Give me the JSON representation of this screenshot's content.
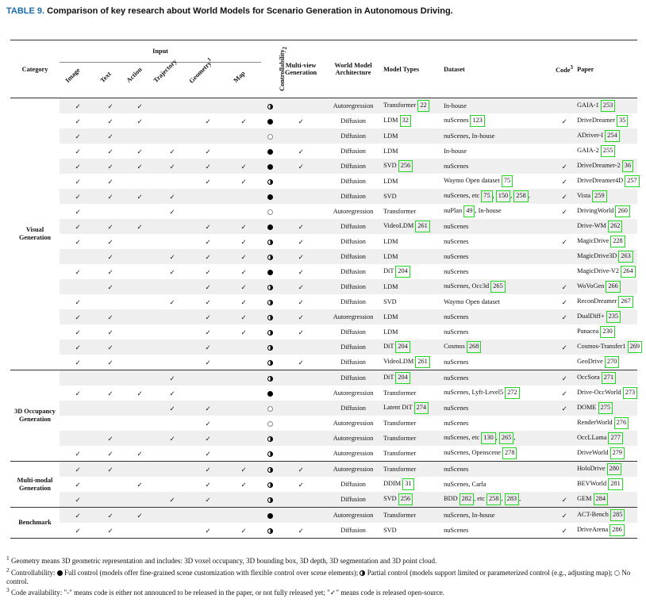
{
  "caption": {
    "label": "TABLE 9.",
    "text": "Comparison of key research about World Models for Scenario Generation in Autonomous Driving."
  },
  "header": {
    "category": "Category",
    "input": "Input",
    "image": "Image",
    "text": "Text",
    "action": "Action",
    "trajectory": "Trajectory",
    "geometry": "Geometry",
    "geometry_sup": "1",
    "map": "Map",
    "controllability": "Controllability",
    "controllability_sup": "2",
    "multiview_1": "Multi-view",
    "multiview_2": "Generation",
    "arch_1": "World Model",
    "arch_2": "Architecture",
    "model_types": "Model Types",
    "dataset": "Dataset",
    "code": "Code",
    "code_sup": "3",
    "paper": "Paper"
  },
  "groups": [
    {
      "category": "Visual Generation",
      "rows": [
        {
          "img": "✓",
          "txt": "✓",
          "act": "✓",
          "trj": "",
          "geo": "",
          "map": "",
          "ctl": "partial",
          "mv": "",
          "arch": "Autoregression",
          "mt": "Transformer",
          "mt_ref": "22",
          "ds": "In-house",
          "code": "",
          "paper": "GAIA-1",
          "ref": "253"
        },
        {
          "img": "✓",
          "txt": "✓",
          "act": "✓",
          "trj": "",
          "geo": "✓",
          "map": "✓",
          "ctl": "full",
          "mv": "✓",
          "arch": "Diffusion",
          "mt": "LDM",
          "mt_ref": "32",
          "ds": "nuScenes",
          "ds_ref": "123",
          "code": "✓",
          "paper": "DriveDreamer",
          "ref": "35"
        },
        {
          "img": "✓",
          "txt": "✓",
          "act": "",
          "trj": "",
          "geo": "",
          "map": "",
          "ctl": "none",
          "mv": "",
          "arch": "Diffusion",
          "mt": "LDM",
          "ds": "nuScenes, In-house",
          "code": "",
          "paper": "ADriver-I",
          "ref": "254"
        },
        {
          "img": "✓",
          "txt": "✓",
          "act": "✓",
          "trj": "✓",
          "geo": "✓",
          "map": "",
          "ctl": "full",
          "mv": "✓",
          "arch": "Diffusion",
          "mt": "LDM",
          "ds": "In-house",
          "code": "",
          "paper": "GAIA-2",
          "ref": "255"
        },
        {
          "img": "✓",
          "txt": "✓",
          "act": "✓",
          "trj": "✓",
          "geo": "✓",
          "map": "✓",
          "ctl": "full",
          "mv": "✓",
          "arch": "Diffusion",
          "mt": "SVD",
          "mt_ref": "256",
          "ds": "nuScenes",
          "code": "✓",
          "paper": "DriveDreamer-2",
          "ref": "36"
        },
        {
          "img": "✓",
          "txt": "✓",
          "act": "",
          "trj": "",
          "geo": "✓",
          "map": "✓",
          "ctl": "partial",
          "mv": "",
          "arch": "Diffusion",
          "mt": "LDM",
          "ds": "Waymo Open dataset",
          "ds_ref": "75",
          "code": "✓",
          "paper": "DriveDreamer4D",
          "ref": "257"
        },
        {
          "img": "✓",
          "txt": "✓",
          "act": "✓",
          "trj": "✓",
          "geo": "",
          "map": "",
          "ctl": "full",
          "mv": "",
          "arch": "Diffusion",
          "mt": "SVD",
          "ds": "nuScenes, etc",
          "ds_refs": [
            "75",
            "150",
            "258"
          ],
          "code": "✓",
          "paper": "Vista",
          "ref": "259"
        },
        {
          "img": "✓",
          "txt": "",
          "act": "",
          "trj": "✓",
          "geo": "",
          "map": "",
          "ctl": "none",
          "mv": "",
          "arch": "Autoregression",
          "mt": "Transformer",
          "ds": "nuPlan",
          "ds_ref": "49",
          "ds_suffix": ", In-house",
          "code": "✓",
          "paper": "DrivingWorld",
          "ref": "260"
        },
        {
          "img": "✓",
          "txt": "✓",
          "act": "✓",
          "trj": "",
          "geo": "✓",
          "map": "✓",
          "ctl": "full",
          "mv": "✓",
          "arch": "Diffusion",
          "mt": "VideoLDM",
          "mt_ref": "261",
          "ds": "nuScenes",
          "code": "",
          "paper": "Drive-WM",
          "ref": "262"
        },
        {
          "img": "✓",
          "txt": "✓",
          "act": "",
          "trj": "",
          "geo": "✓",
          "map": "✓",
          "ctl": "partial",
          "mv": "✓",
          "arch": "Diffusion",
          "mt": "LDM",
          "ds": "nuScenes",
          "code": "✓",
          "paper": "MagicDrive",
          "ref": "228"
        },
        {
          "img": "",
          "txt": "✓",
          "act": "",
          "trj": "✓",
          "geo": "✓",
          "map": "✓",
          "ctl": "partial",
          "mv": "✓",
          "arch": "Diffusion",
          "mt": "LDM",
          "ds": "nuScenes",
          "code": "",
          "paper": "MagicDrive3D",
          "ref": "263"
        },
        {
          "img": "✓",
          "txt": "✓",
          "act": "",
          "trj": "✓",
          "geo": "✓",
          "map": "✓",
          "ctl": "full",
          "mv": "✓",
          "arch": "Diffusion",
          "mt": "DiT",
          "mt_ref": "204",
          "ds": "nuScenes",
          "code": "",
          "paper": "MagicDrive-V2",
          "ref": "264"
        },
        {
          "img": "",
          "txt": "✓",
          "act": "",
          "trj": "",
          "geo": "✓",
          "map": "✓",
          "ctl": "partial",
          "mv": "✓",
          "arch": "Diffusion",
          "mt": "LDM",
          "ds": "nuScenes, Occ3d",
          "ds_ref": "265",
          "code": "✓",
          "paper": "WoVoGen",
          "ref": "266"
        },
        {
          "img": "✓",
          "txt": "",
          "act": "",
          "trj": "✓",
          "geo": "✓",
          "map": "✓",
          "ctl": "partial",
          "mv": "✓",
          "arch": "Diffusion",
          "mt": "SVD",
          "ds": "Waymo Open dataset",
          "code": "✓",
          "paper": "ReconDreamer",
          "ref": "267"
        },
        {
          "img": "✓",
          "txt": "✓",
          "act": "",
          "trj": "",
          "geo": "✓",
          "map": "✓",
          "ctl": "partial",
          "mv": "✓",
          "arch": "Autoregression",
          "mt": "LDM",
          "ds": "nuScenes",
          "code": "✓",
          "paper": "DualDiff+",
          "ref": "235"
        },
        {
          "img": "✓",
          "txt": "✓",
          "act": "",
          "trj": "",
          "geo": "✓",
          "map": "✓",
          "ctl": "partial",
          "mv": "✓",
          "arch": "Diffusion",
          "mt": "LDM",
          "ds": "nuScenes",
          "code": "",
          "paper": "Panacea",
          "ref": "230"
        },
        {
          "img": "✓",
          "txt": "✓",
          "act": "",
          "trj": "",
          "geo": "✓",
          "map": "",
          "ctl": "partial",
          "mv": "",
          "arch": "Diffusion",
          "mt": "DiT",
          "mt_ref": "204",
          "ds": "Cosmos",
          "ds_ref": "268",
          "code": "✓",
          "paper": "Cosmos-Transfer1",
          "ref": "269"
        },
        {
          "img": "✓",
          "txt": "✓",
          "act": "",
          "trj": "",
          "geo": "✓",
          "map": "",
          "ctl": "partial",
          "mv": "✓",
          "arch": "Diffusion",
          "mt": "VideoLDM",
          "mt_ref": "261",
          "ds": "nuScenes",
          "code": "",
          "paper": "GeoDrive",
          "ref": "270"
        }
      ]
    },
    {
      "category": "3D Occupancy Generation",
      "rows": [
        {
          "img": "",
          "txt": "",
          "act": "",
          "trj": "✓",
          "geo": "",
          "map": "",
          "ctl": "partial",
          "mv": "",
          "arch": "Diffusion",
          "mt": "DiT",
          "mt_ref": "204",
          "ds": "nuScenes",
          "code": "✓",
          "paper": "OccSora",
          "ref": "271"
        },
        {
          "img": "✓",
          "txt": "✓",
          "act": "✓",
          "trj": "✓",
          "geo": "",
          "map": "",
          "ctl": "full",
          "mv": "",
          "arch": "Autoregression",
          "mt": "Transformer",
          "ds": "nuScenes, Lyft-Level5",
          "ds_ref": "272",
          "code": "✓",
          "paper": "Drive-OccWorld",
          "ref": "273"
        },
        {
          "img": "",
          "txt": "",
          "act": "",
          "trj": "✓",
          "geo": "✓",
          "map": "",
          "ctl": "none",
          "mv": "",
          "arch": "Diffusion",
          "mt": "Latent DiT",
          "mt_ref": "274",
          "ds": "nuScenes",
          "code": "✓",
          "paper": "DOME",
          "ref": "275"
        },
        {
          "img": "",
          "txt": "",
          "act": "",
          "trj": "",
          "geo": "✓",
          "map": "",
          "ctl": "none",
          "mv": "",
          "arch": "Autoregression",
          "mt": "Transformer",
          "ds": "nuScenes",
          "code": "",
          "paper": "RenderWorld",
          "ref": "276"
        },
        {
          "img": "",
          "txt": "✓",
          "act": "",
          "trj": "✓",
          "geo": "✓",
          "map": "",
          "ctl": "partial",
          "mv": "",
          "arch": "Autoregression",
          "mt": "Transformer",
          "ds": "nuScenes, etc",
          "ds_refs": [
            "130",
            "265"
          ],
          "code": "",
          "paper": "OccLLama",
          "ref": "277"
        },
        {
          "img": "✓",
          "txt": "✓",
          "act": "✓",
          "trj": "",
          "geo": "✓",
          "map": "",
          "ctl": "partial",
          "mv": "",
          "arch": "Autoregression",
          "mt": "Transformer",
          "ds": "nuScenes, Openscene",
          "ds_ref": "278",
          "code": "",
          "paper": "DriveWorld",
          "ref": "279"
        }
      ]
    },
    {
      "category": "Multi-modal Generation",
      "rows": [
        {
          "img": "✓",
          "txt": "✓",
          "act": "",
          "trj": "",
          "geo": "✓",
          "map": "✓",
          "ctl": "partial",
          "mv": "✓",
          "arch": "Autoregression",
          "mt": "Transformer",
          "ds": "nuScenes",
          "code": "",
          "paper": "HoloDrive",
          "ref": "280"
        },
        {
          "img": "✓",
          "txt": "",
          "act": "✓",
          "trj": "",
          "geo": "✓",
          "map": "✓",
          "ctl": "partial",
          "mv": "✓",
          "arch": "Diffusion",
          "mt": "DDIM",
          "mt_ref": "31",
          "ds": "nuScenes, Carla",
          "code": "",
          "paper": "BEVWorld",
          "ref": "281"
        },
        {
          "img": "✓",
          "txt": "",
          "act": "",
          "trj": "✓",
          "geo": "✓",
          "map": "",
          "ctl": "partial",
          "mv": "",
          "arch": "Diffusion",
          "mt": "SVD",
          "mt_ref": "256",
          "ds": "BDD",
          "ds_ref": "282",
          "ds_mid": ", etc",
          "ds_refs": [
            "258",
            "283"
          ],
          "code": "✓",
          "paper": "GEM",
          "ref": "284"
        }
      ]
    },
    {
      "category": "Benchmark",
      "rows": [
        {
          "img": "✓",
          "txt": "✓",
          "act": "✓",
          "trj": "",
          "geo": "",
          "map": "",
          "ctl": "full",
          "mv": "",
          "arch": "Autoregression",
          "mt": "Transformer",
          "ds": "nuScenes, In-house",
          "code": "✓",
          "paper": "ACT-Bench",
          "ref": "285"
        },
        {
          "img": "✓",
          "txt": "✓",
          "act": "",
          "trj": "",
          "geo": "✓",
          "map": "✓",
          "ctl": "partial",
          "mv": "✓",
          "arch": "Diffusion",
          "mt": "SVD",
          "ds": "nuScenes",
          "code": "✓",
          "paper": "DriveArena",
          "ref": "286"
        }
      ]
    }
  ],
  "notes": [
    {
      "sup": "1",
      "text": "Geometry means 3D geometric representation and includes: 3D voxel occupancy, 3D bounding box, 3D depth, 3D segmentation and 3D point cloud."
    },
    {
      "sup": "2",
      "text_a": "Controllability: ",
      "text_b": " Full control (models offer fine-grained scene customization with flexible control over scene elements); ",
      "text_c": " Partial control (models support limited or parameterized control (e.g., adjusting map); ",
      "text_d": " No control."
    },
    {
      "sup": "3",
      "text": "Code availability: \"-\" means code is either not announced to be released in the paper, or not fully released yet; \"✓\" means code is released open-source."
    }
  ]
}
